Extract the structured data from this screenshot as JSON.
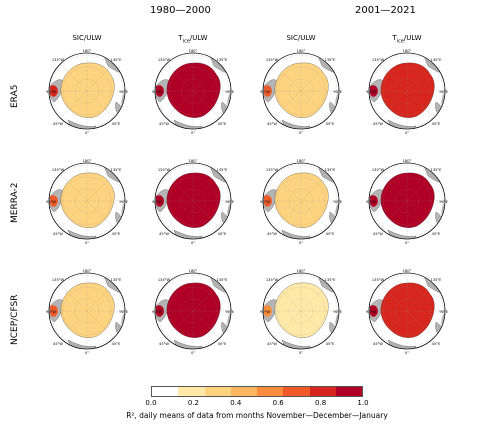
{
  "periods": [
    "1980—2000",
    "2001—2021"
  ],
  "columns": [
    {
      "title": "SIC/ULW",
      "sub": ""
    },
    {
      "title": "T",
      "sub": "ice",
      "suffix": "/ULW"
    },
    {
      "title": "SIC/ULW",
      "sub": ""
    },
    {
      "title": "T",
      "sub": "ice",
      "suffix": "/ULW"
    }
  ],
  "rows": [
    "ERA5",
    "MERRA-2",
    "NCEP/CFSR"
  ],
  "map_labels": {
    "top": "180°",
    "upper_left": "135°W",
    "upper_right": "135°E",
    "left": "90°W",
    "right": "90°E",
    "lower_left": "45°W",
    "lower_right": "45°E",
    "bottom": "0°"
  },
  "colorbar": {
    "ticks": [
      "0.0",
      "0.2",
      "0.4",
      "0.6",
      "0.8",
      "1.0"
    ],
    "colors": [
      "#ffffff",
      "#fee9a8",
      "#fed380",
      "#fdb560",
      "#fc8d3c",
      "#f05a29",
      "#d7261e",
      "#b10026"
    ],
    "label": "R², daily means of data from months November—December—January"
  },
  "chart_data": {
    "type": "heatmap",
    "title": "",
    "value_range": [
      0,
      1
    ],
    "panels_mean_r2": [
      [
        0.35,
        0.9,
        0.3,
        0.85
      ],
      [
        0.3,
        0.92,
        0.3,
        0.88
      ],
      [
        0.25,
        0.9,
        0.2,
        0.85
      ]
    ]
  }
}
